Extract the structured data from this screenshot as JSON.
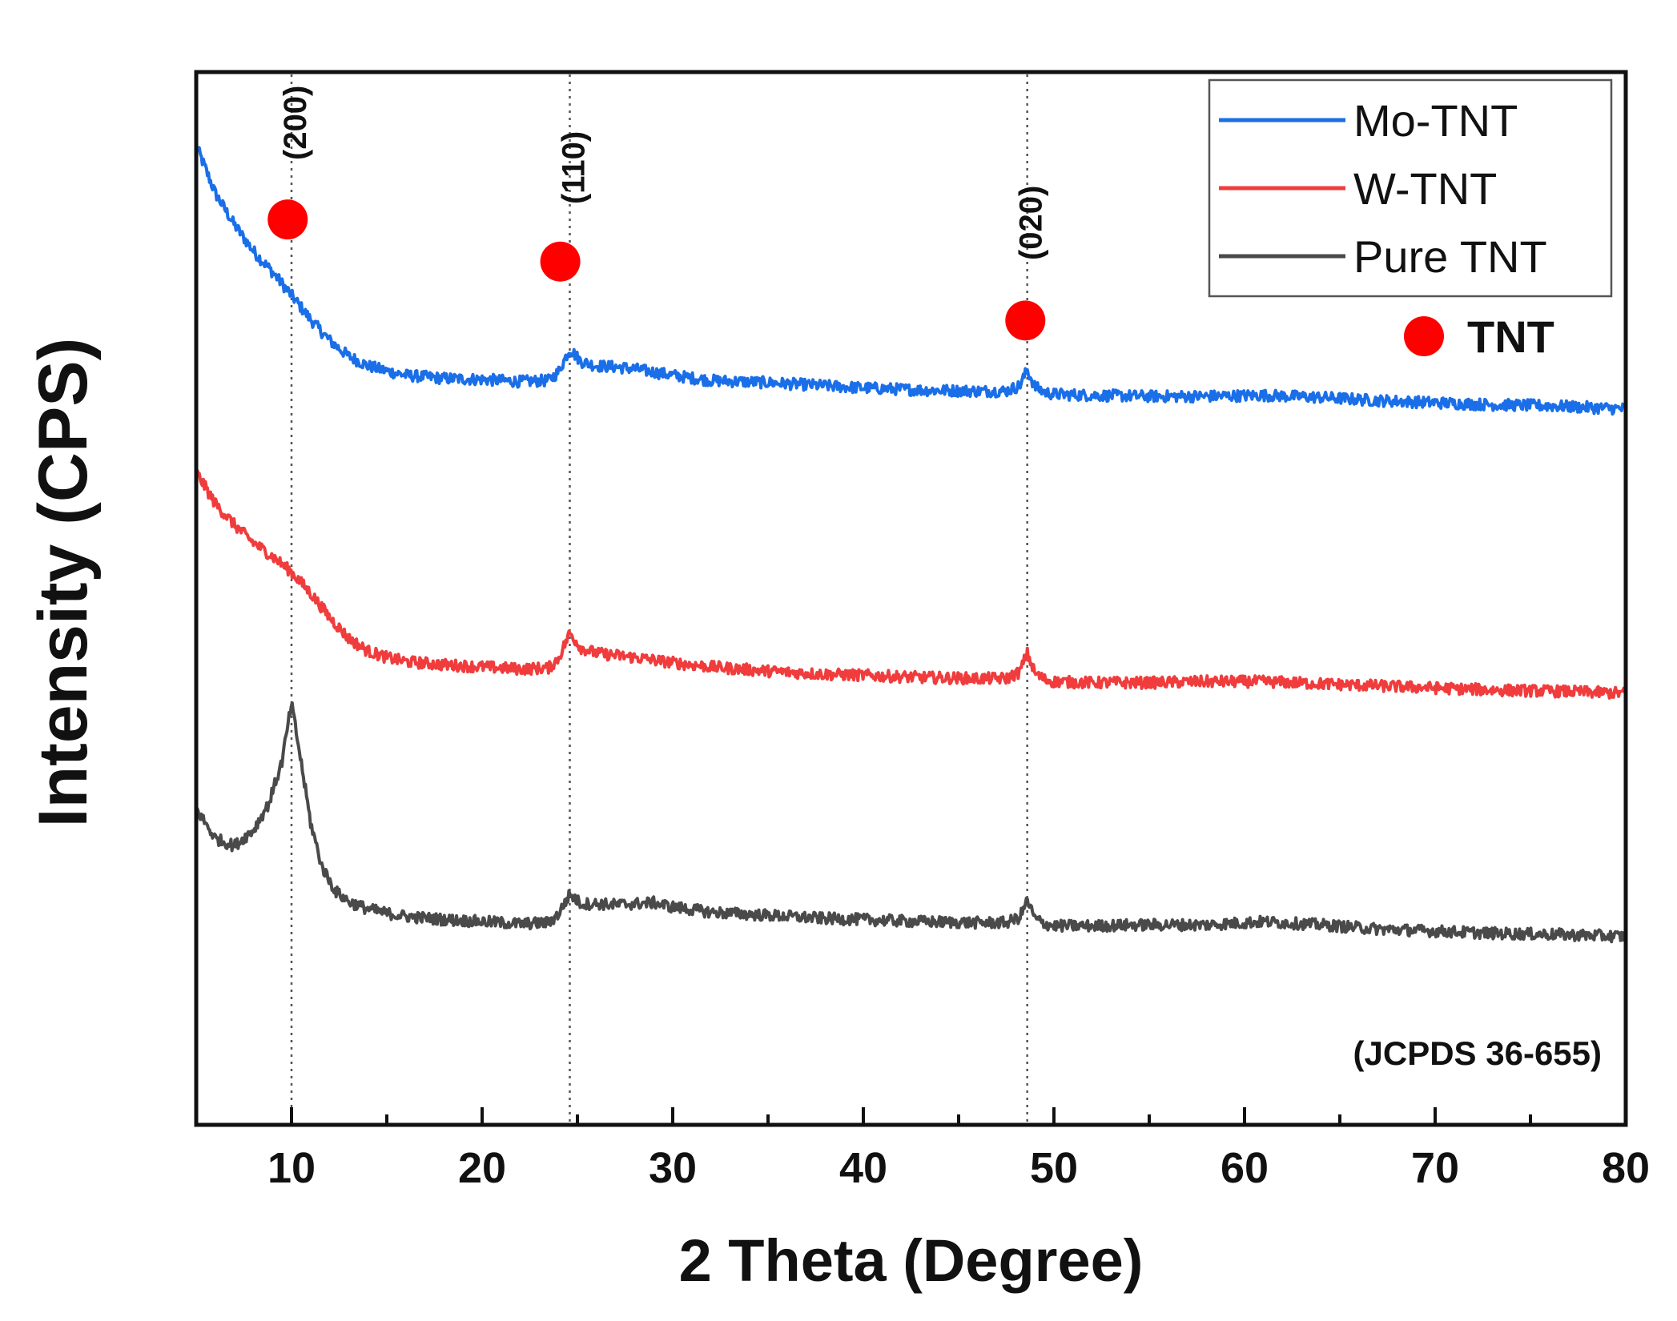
{
  "chart_data": {
    "type": "line",
    "xlabel": "2 Theta (Degree)",
    "ylabel": "Intensity (CPS)",
    "xlim": [
      5,
      80
    ],
    "ylim": [
      0,
      1
    ],
    "x_ticks": [
      10,
      20,
      30,
      40,
      50,
      60,
      70,
      80
    ],
    "y_ticks": [],
    "grid": false,
    "legend_position": "top-right",
    "reference_note": "(JCPDS 36-655)",
    "marker_legend": {
      "label": "TNT",
      "color": "#ff0000"
    },
    "peak_lines": [
      {
        "x": 10,
        "label": "(200)"
      },
      {
        "x": 24.6,
        "label": "(110)"
      },
      {
        "x": 48.6,
        "label": "(020)"
      }
    ],
    "series": [
      {
        "name": "Mo-TNT",
        "color": "#1a6fe8",
        "x": [
          5,
          6,
          7,
          8,
          9,
          10,
          11,
          12,
          13,
          14,
          15,
          16,
          18,
          20,
          22,
          23.5,
          24,
          24.6,
          25.2,
          26,
          27,
          28,
          30,
          32,
          35,
          38,
          40,
          43,
          46,
          47.5,
          48.2,
          48.6,
          49,
          49.5,
          50,
          52,
          55,
          58,
          61,
          64,
          67,
          70,
          73,
          76,
          80
        ],
        "values": [
          0.93,
          0.885,
          0.855,
          0.83,
          0.81,
          0.788,
          0.765,
          0.745,
          0.73,
          0.721,
          0.716,
          0.712,
          0.709,
          0.708,
          0.706,
          0.707,
          0.715,
          0.737,
          0.725,
          0.721,
          0.72,
          0.718,
          0.712,
          0.707,
          0.705,
          0.702,
          0.7,
          0.698,
          0.697,
          0.697,
          0.702,
          0.717,
          0.701,
          0.696,
          0.694,
          0.693,
          0.692,
          0.692,
          0.693,
          0.691,
          0.688,
          0.686,
          0.684,
          0.683,
          0.68
        ]
      },
      {
        "name": "W-TNT",
        "color": "#f03c3c",
        "x": [
          5,
          6,
          7,
          8,
          9,
          10,
          11,
          12,
          13,
          14,
          15,
          16,
          18,
          20,
          22,
          23.5,
          24,
          24.6,
          25.2,
          26,
          27,
          28,
          30,
          32,
          35,
          38,
          40,
          43,
          46,
          47.5,
          48.2,
          48.6,
          49,
          49.5,
          50,
          52,
          55,
          58,
          61,
          64,
          67,
          70,
          73,
          76,
          80
        ],
        "values": [
          0.62,
          0.59,
          0.57,
          0.553,
          0.54,
          0.525,
          0.505,
          0.482,
          0.462,
          0.45,
          0.444,
          0.44,
          0.437,
          0.435,
          0.433,
          0.434,
          0.443,
          0.467,
          0.453,
          0.448,
          0.446,
          0.444,
          0.439,
          0.435,
          0.431,
          0.428,
          0.427,
          0.425,
          0.424,
          0.424,
          0.43,
          0.448,
          0.429,
          0.423,
          0.421,
          0.42,
          0.42,
          0.421,
          0.421,
          0.419,
          0.417,
          0.415,
          0.413,
          0.412,
          0.41
        ]
      },
      {
        "name": "Pure TNT",
        "color": "#4a4a4a",
        "x": [
          5,
          6,
          7,
          8,
          8.8,
          9.5,
          10,
          10.5,
          11,
          11.6,
          12.3,
          13,
          14,
          15,
          16,
          18,
          20,
          22,
          23.5,
          24,
          24.6,
          25.2,
          26,
          27,
          28,
          29,
          30,
          32,
          35,
          38,
          40,
          43,
          46,
          47.5,
          48.2,
          48.6,
          49,
          49.5,
          50,
          52,
          55,
          58,
          61,
          64,
          67,
          70,
          73,
          76,
          80
        ],
        "values": [
          0.3,
          0.272,
          0.265,
          0.28,
          0.305,
          0.345,
          0.4,
          0.345,
          0.287,
          0.245,
          0.222,
          0.212,
          0.205,
          0.201,
          0.198,
          0.195,
          0.193,
          0.191,
          0.192,
          0.2,
          0.219,
          0.21,
          0.21,
          0.209,
          0.21,
          0.211,
          0.207,
          0.202,
          0.199,
          0.196,
          0.195,
          0.193,
          0.192,
          0.192,
          0.197,
          0.213,
          0.196,
          0.191,
          0.189,
          0.189,
          0.19,
          0.19,
          0.193,
          0.19,
          0.186,
          0.184,
          0.182,
          0.181,
          0.179
        ]
      }
    ],
    "peak_markers": [
      {
        "x": 9.8,
        "y": 0.86
      },
      {
        "x": 24.1,
        "y": 0.82
      },
      {
        "x": 48.5,
        "y": 0.764
      }
    ]
  }
}
